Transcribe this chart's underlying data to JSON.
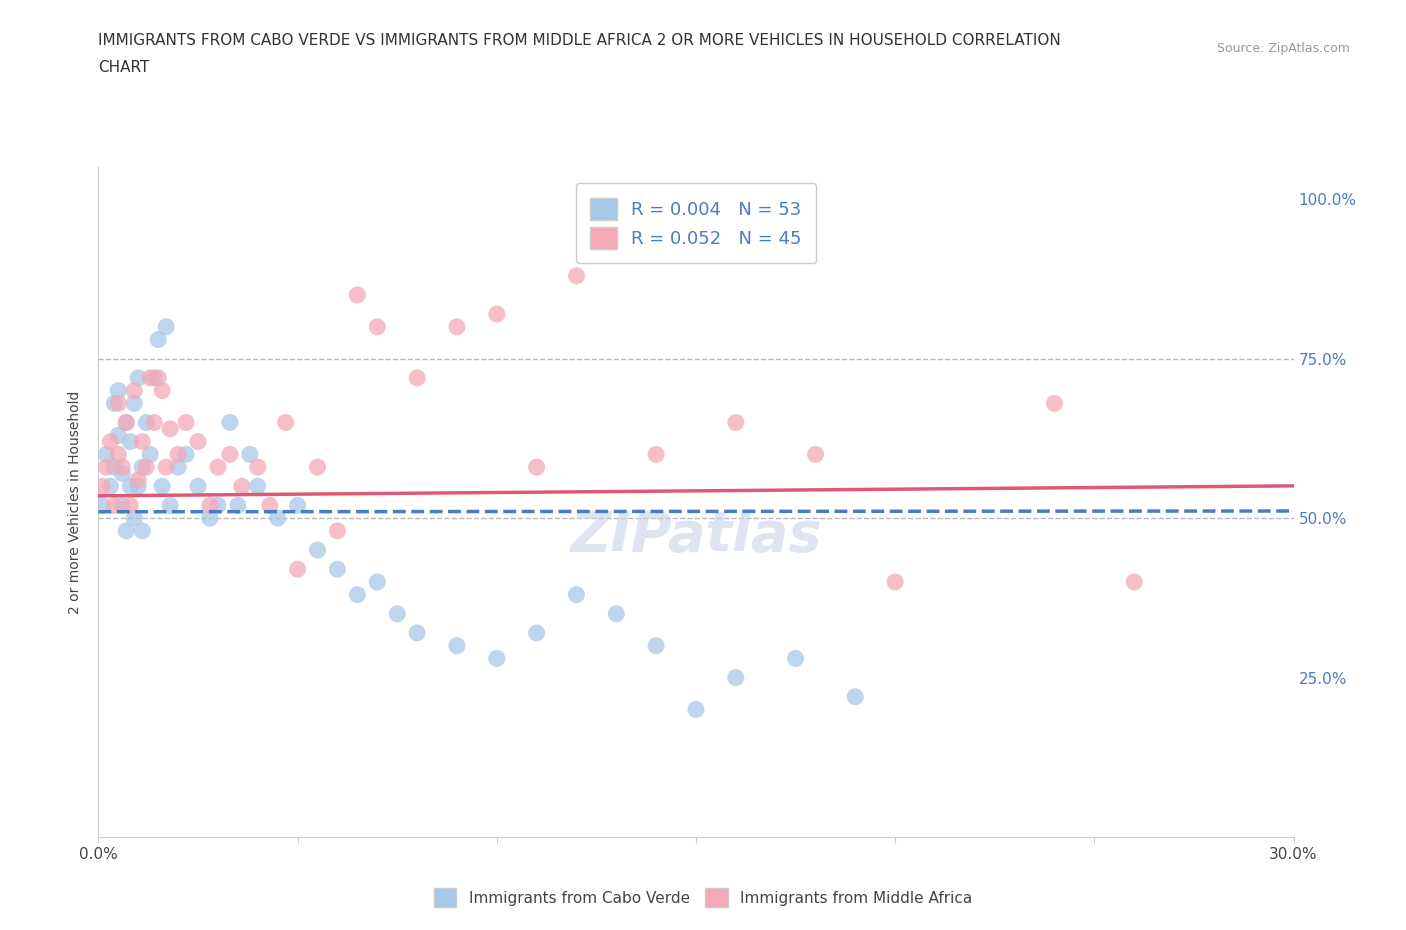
{
  "title_line1": "IMMIGRANTS FROM CABO VERDE VS IMMIGRANTS FROM MIDDLE AFRICA 2 OR MORE VEHICLES IN HOUSEHOLD CORRELATION",
  "title_line2": "CHART",
  "source_text": "Source: ZipAtlas.com",
  "ylabel": "2 or more Vehicles in Household",
  "xlim": [
    0.0,
    0.3
  ],
  "ylim": [
    0.0,
    1.05
  ],
  "xticks": [
    0.0,
    0.05,
    0.1,
    0.15,
    0.2,
    0.25,
    0.3
  ],
  "xticklabels": [
    "0.0%",
    "",
    "",
    "",
    "",
    "",
    "30.0%"
  ],
  "yticks_right": [
    0.25,
    0.5,
    0.75,
    1.0
  ],
  "yticklabels_right": [
    "25.0%",
    "50.0%",
    "75.0%",
    "100.0%"
  ],
  "R_cabo": 0.004,
  "N_cabo": 53,
  "R_middle": 0.052,
  "N_middle": 45,
  "color_cabo": "#a8c8e8",
  "color_middle": "#f4a8b8",
  "color_line_cabo": "#4a7cc0",
  "color_line_middle": "#e05878",
  "hline_color": "#b0b8cc",
  "watermark_color": "#c8d4e8",
  "cabo_x": [
    0.001,
    0.002,
    0.003,
    0.004,
    0.004,
    0.005,
    0.005,
    0.006,
    0.006,
    0.007,
    0.007,
    0.008,
    0.008,
    0.009,
    0.009,
    0.01,
    0.01,
    0.011,
    0.011,
    0.012,
    0.013,
    0.014,
    0.015,
    0.016,
    0.017,
    0.018,
    0.02,
    0.022,
    0.025,
    0.028,
    0.03,
    0.033,
    0.035,
    0.038,
    0.04,
    0.045,
    0.05,
    0.055,
    0.06,
    0.065,
    0.07,
    0.075,
    0.08,
    0.09,
    0.1,
    0.11,
    0.12,
    0.13,
    0.14,
    0.15,
    0.16,
    0.175,
    0.19
  ],
  "cabo_y": [
    0.52,
    0.6,
    0.55,
    0.68,
    0.58,
    0.7,
    0.63,
    0.57,
    0.52,
    0.65,
    0.48,
    0.62,
    0.55,
    0.68,
    0.5,
    0.72,
    0.55,
    0.58,
    0.48,
    0.65,
    0.6,
    0.72,
    0.78,
    0.55,
    0.8,
    0.52,
    0.58,
    0.6,
    0.55,
    0.5,
    0.52,
    0.65,
    0.52,
    0.6,
    0.55,
    0.5,
    0.52,
    0.45,
    0.42,
    0.38,
    0.4,
    0.35,
    0.32,
    0.3,
    0.28,
    0.32,
    0.38,
    0.35,
    0.3,
    0.2,
    0.25,
    0.28,
    0.22
  ],
  "middle_x": [
    0.001,
    0.002,
    0.003,
    0.004,
    0.005,
    0.005,
    0.006,
    0.007,
    0.008,
    0.009,
    0.01,
    0.011,
    0.012,
    0.013,
    0.014,
    0.015,
    0.016,
    0.017,
    0.018,
    0.02,
    0.022,
    0.025,
    0.028,
    0.03,
    0.033,
    0.036,
    0.04,
    0.043,
    0.047,
    0.05,
    0.055,
    0.06,
    0.065,
    0.07,
    0.08,
    0.09,
    0.1,
    0.11,
    0.12,
    0.14,
    0.16,
    0.18,
    0.2,
    0.24,
    0.26
  ],
  "middle_y": [
    0.55,
    0.58,
    0.62,
    0.52,
    0.68,
    0.6,
    0.58,
    0.65,
    0.52,
    0.7,
    0.56,
    0.62,
    0.58,
    0.72,
    0.65,
    0.72,
    0.7,
    0.58,
    0.64,
    0.6,
    0.65,
    0.62,
    0.52,
    0.58,
    0.6,
    0.55,
    0.58,
    0.52,
    0.65,
    0.42,
    0.58,
    0.48,
    0.85,
    0.8,
    0.72,
    0.8,
    0.82,
    0.58,
    0.88,
    0.6,
    0.65,
    0.6,
    0.4,
    0.68,
    0.4
  ]
}
